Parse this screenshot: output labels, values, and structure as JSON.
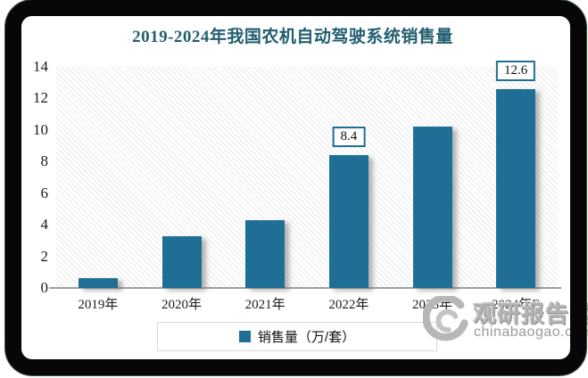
{
  "title": "2019-2024年我国农机自动驾驶系统销售量",
  "legend": {
    "label": "销售量（万/套）"
  },
  "watermark": {
    "brand": "观研报告网",
    "domain": "chinabaogao.com"
  },
  "colors": {
    "bar": "#1E6E96",
    "title": "#235E70",
    "label_border": "#1E6E96",
    "axis_line": "#A0A0A0"
  },
  "chart_data": {
    "type": "bar",
    "title": "2019-2024年我国农机自动驾驶系统销售量",
    "categories": [
      "2019年",
      "2020年",
      "2021年",
      "2022年",
      "2023年",
      "2024年E"
    ],
    "values": [
      0.6,
      3.3,
      4.3,
      8.4,
      10.2,
      12.6
    ],
    "data_labels": [
      "",
      "",
      "",
      "8.4",
      "",
      "12.6"
    ],
    "xlabel": "",
    "ylabel": "",
    "ylim": [
      0,
      14
    ],
    "yticks": [
      0,
      2,
      4,
      6,
      8,
      10,
      12,
      14
    ],
    "legend": [
      "销售量（万/套）"
    ],
    "legend_position": "bottom",
    "grid": false,
    "plot_background": "diagonal-hatch"
  }
}
